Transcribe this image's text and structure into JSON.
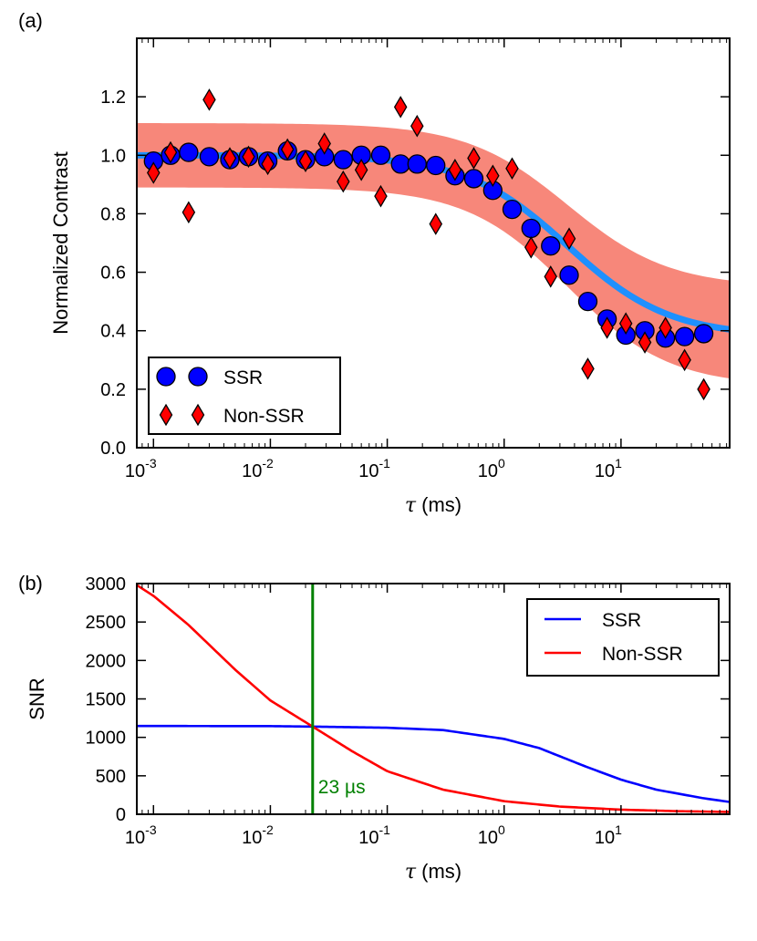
{
  "chart_data": [
    {
      "id": "a",
      "panel_label": "(a)",
      "type": "scatter",
      "xscale": "log",
      "xlabel": "τ (ms)",
      "ylabel": "Normalized Contrast",
      "xlim": [
        0.00072,
        85
      ],
      "ylim": [
        0.0,
        1.4
      ],
      "x_ticks": [
        0.001,
        0.01,
        0.1,
        1,
        10
      ],
      "x_tick_labels": [
        {
          "base": "10",
          "exp": "-3"
        },
        {
          "base": "10",
          "exp": "-2"
        },
        {
          "base": "10",
          "exp": "-1"
        },
        {
          "base": "10",
          "exp": "0"
        },
        {
          "base": "10",
          "exp": "1"
        }
      ],
      "y_ticks": [
        0.0,
        0.2,
        0.4,
        0.6,
        0.8,
        1.0,
        1.2
      ],
      "y_tick_labels": [
        "0.0",
        "0.2",
        "0.4",
        "0.6",
        "0.8",
        "1.0",
        "1.2"
      ],
      "legend_position": "bottom-left",
      "fit": {
        "plateau_high": 1.0,
        "plateau_low": 0.38,
        "tau_c_ms": 3.5,
        "band_halfwidth_high": 0.11,
        "band_halfwidth_low": 0.17
      },
      "series": [
        {
          "name": "SSR",
          "marker": "circle",
          "color": "#0000ff",
          "x": [
            0.001,
            0.0014,
            0.002,
            0.003,
            0.0045,
            0.0065,
            0.0095,
            0.014,
            0.02,
            0.029,
            0.042,
            0.06,
            0.088,
            0.13,
            0.18,
            0.26,
            0.38,
            0.55,
            0.8,
            1.17,
            1.7,
            2.5,
            3.6,
            5.2,
            7.6,
            11,
            16,
            24,
            35,
            51
          ],
          "y": [
            0.98,
            1.0,
            1.01,
            0.995,
            0.985,
            0.995,
            0.98,
            1.015,
            0.985,
            0.995,
            0.985,
            1.0,
            1.0,
            0.97,
            0.97,
            0.965,
            0.93,
            0.92,
            0.88,
            0.815,
            0.75,
            0.69,
            0.59,
            0.5,
            0.44,
            0.385,
            0.4,
            0.375,
            0.38,
            0.39
          ]
        },
        {
          "name": "Non-SSR",
          "marker": "diamond",
          "color": "#ff0000",
          "x": [
            0.001,
            0.0014,
            0.002,
            0.003,
            0.0045,
            0.0065,
            0.0095,
            0.014,
            0.02,
            0.029,
            0.042,
            0.06,
            0.088,
            0.13,
            0.18,
            0.26,
            0.38,
            0.55,
            0.8,
            1.17,
            1.7,
            2.5,
            3.6,
            5.2,
            7.6,
            11,
            16,
            24,
            35,
            51
          ],
          "y": [
            0.94,
            1.01,
            0.805,
            1.19,
            0.99,
            0.995,
            0.97,
            1.02,
            0.98,
            1.04,
            0.91,
            0.95,
            0.86,
            1.165,
            1.1,
            0.765,
            0.95,
            0.99,
            0.93,
            0.955,
            0.685,
            0.585,
            0.715,
            0.27,
            0.41,
            0.425,
            0.36,
            0.41,
            0.3,
            0.2
          ]
        }
      ]
    },
    {
      "id": "b",
      "panel_label": "(b)",
      "type": "line",
      "xscale": "log",
      "xlabel": "τ (ms)",
      "ylabel": "SNR",
      "xlim": [
        0.00072,
        85
      ],
      "ylim": [
        0,
        3000
      ],
      "x_ticks": [
        0.001,
        0.01,
        0.1,
        1,
        10
      ],
      "x_tick_labels": [
        {
          "base": "10",
          "exp": "-3"
        },
        {
          "base": "10",
          "exp": "-2"
        },
        {
          "base": "10",
          "exp": "-1"
        },
        {
          "base": "10",
          "exp": "0"
        },
        {
          "base": "10",
          "exp": "1"
        }
      ],
      "y_ticks": [
        0,
        500,
        1000,
        1500,
        2000,
        2500,
        3000
      ],
      "y_tick_labels": [
        "0",
        "500",
        "1000",
        "1500",
        "2000",
        "2500",
        "3000"
      ],
      "legend_position": "top-right",
      "vline": {
        "x": 0.023,
        "color": "#008000",
        "label": "23 µs"
      },
      "series": [
        {
          "name": "SSR",
          "color": "#0000ff",
          "x": [
            0.00072,
            0.001,
            0.01,
            0.023,
            0.1,
            0.3,
            1,
            2,
            5,
            10,
            20,
            50,
            85
          ],
          "y": [
            1148,
            1148,
            1146,
            1140,
            1125,
            1095,
            980,
            860,
            620,
            450,
            320,
            210,
            160
          ]
        },
        {
          "name": "Non-SSR",
          "color": "#ff0000",
          "x": [
            0.00072,
            0.001,
            0.002,
            0.005,
            0.01,
            0.023,
            0.05,
            0.1,
            0.3,
            1,
            3,
            10,
            30,
            85
          ],
          "y": [
            2980,
            2840,
            2460,
            1880,
            1480,
            1140,
            820,
            560,
            320,
            170,
            100,
            60,
            40,
            30
          ]
        }
      ]
    }
  ]
}
